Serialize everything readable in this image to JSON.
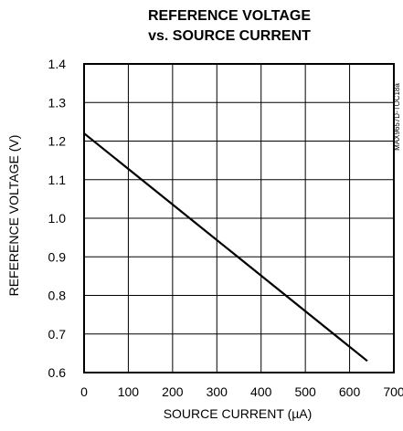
{
  "chart_data": {
    "type": "line",
    "title_lines": [
      "REFERENCE VOLTAGE",
      "vs. SOURCE CURRENT"
    ],
    "xlabel": "SOURCE CURRENT (µA)",
    "ylabel": "REFERENCE VOLTAGE (V)",
    "side_note": "MAX9657D-TOC18a",
    "xlim": [
      0,
      700
    ],
    "ylim": [
      0.6,
      1.4
    ],
    "x_ticks": [
      0,
      100,
      200,
      300,
      400,
      500,
      600,
      700
    ],
    "y_ticks": [
      0.6,
      0.7,
      0.8,
      0.9,
      1.0,
      1.1,
      1.2,
      1.3,
      1.4
    ],
    "x_tick_labels": [
      "0",
      "100",
      "200",
      "300",
      "400",
      "500",
      "600",
      "700"
    ],
    "y_tick_labels": [
      "0.6",
      "0.7",
      "0.8",
      "0.9",
      "1.0",
      "1.1",
      "1.2",
      "1.3",
      "1.4"
    ],
    "grid": true,
    "series": [
      {
        "color": "#000000",
        "points": [
          [
            0,
            1.22
          ],
          [
            640,
            0.63
          ]
        ]
      }
    ]
  }
}
